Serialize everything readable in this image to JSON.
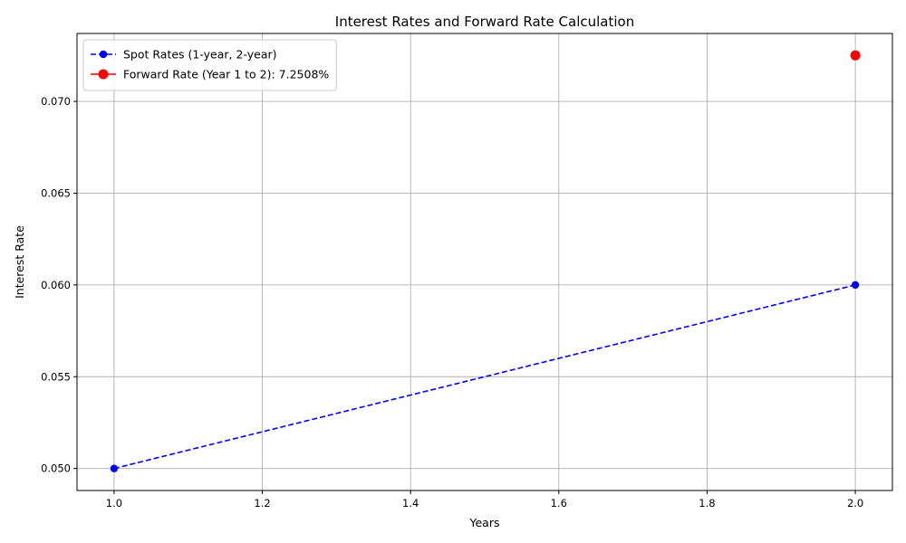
{
  "chart_data": {
    "type": "line",
    "title": "Interest Rates and Forward Rate Calculation",
    "xlabel": "Years",
    "ylabel": "Interest Rate",
    "xlim": [
      0.95,
      2.05
    ],
    "ylim": [
      0.0488,
      0.0737
    ],
    "xticks": [
      1.0,
      1.2,
      1.4,
      1.6,
      1.8,
      2.0
    ],
    "xtick_labels": [
      "1.0",
      "1.2",
      "1.4",
      "1.6",
      "1.8",
      "2.0"
    ],
    "yticks": [
      0.05,
      0.055,
      0.06,
      0.065,
      0.07
    ],
    "ytick_labels": [
      "0.050",
      "0.055",
      "0.060",
      "0.065",
      "0.070"
    ],
    "grid": true,
    "legend_position": "top-left",
    "series": [
      {
        "name": "Spot Rates (1-year, 2-year)",
        "x": [
          1,
          2
        ],
        "y": [
          0.05,
          0.06
        ],
        "color": "#0000ff",
        "line_style": "dashed",
        "marker": "circle"
      },
      {
        "name": "Forward Rate (Year 1 to 2): 7.2508%",
        "x": [
          2
        ],
        "y": [
          0.072508
        ],
        "color": "#ff0000",
        "line_style": "solid",
        "marker": "circle-large"
      }
    ]
  }
}
